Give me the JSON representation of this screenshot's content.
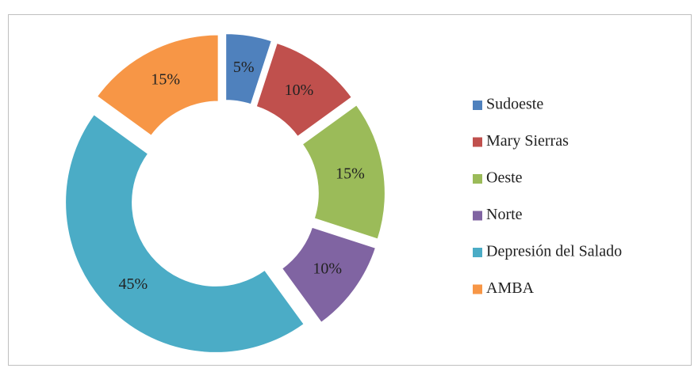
{
  "chart_data": {
    "type": "pie",
    "categories": [
      "Sudoeste",
      "Mary Sierras",
      "Oeste",
      "Norte",
      "Depresión del Salado",
      "AMBA"
    ],
    "values": [
      5,
      10,
      15,
      10,
      45,
      15
    ],
    "value_labels": [
      "5%",
      "10%",
      "15%",
      "10%",
      "45%",
      "15%"
    ],
    "colors": [
      "#4f81bd",
      "#c0504d",
      "#9bbb59",
      "#8064a2",
      "#4bacc6",
      "#f79646"
    ],
    "donut": true,
    "exploded": true,
    "legend": "right"
  }
}
